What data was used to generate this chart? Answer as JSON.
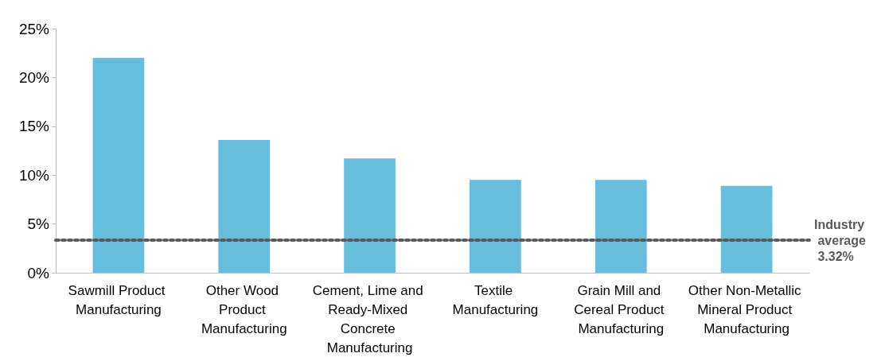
{
  "chart_data": {
    "type": "bar",
    "categories": [
      "Sawmill Product Manufacturing",
      "Other Wood Product Manufacturing",
      "Cement, Lime and Ready-Mixed Concrete Manufacturing",
      "Textile Manufacturing",
      "Grain Mill and Cereal Product Manufacturing",
      "Other Non-Metallic Mineral Product Manufacturing"
    ],
    "values": [
      22.0,
      13.6,
      11.7,
      9.5,
      9.5,
      8.9
    ],
    "color": "#66bddc",
    "ylim": [
      0,
      25
    ],
    "yticks": [
      {
        "value": 0,
        "label": "0%"
      },
      {
        "value": 5,
        "label": "5%"
      },
      {
        "value": 10,
        "label": "10%"
      },
      {
        "value": 15,
        "label": "15%"
      },
      {
        "value": 20,
        "label": "20%"
      },
      {
        "value": 25,
        "label": "25%"
      }
    ],
    "grid": false,
    "ref_lines": [
      {
        "axis": "y",
        "value": 3.32,
        "label": "Industry average 3.32%",
        "color": "#595959",
        "line_style": "dotted"
      }
    ]
  }
}
